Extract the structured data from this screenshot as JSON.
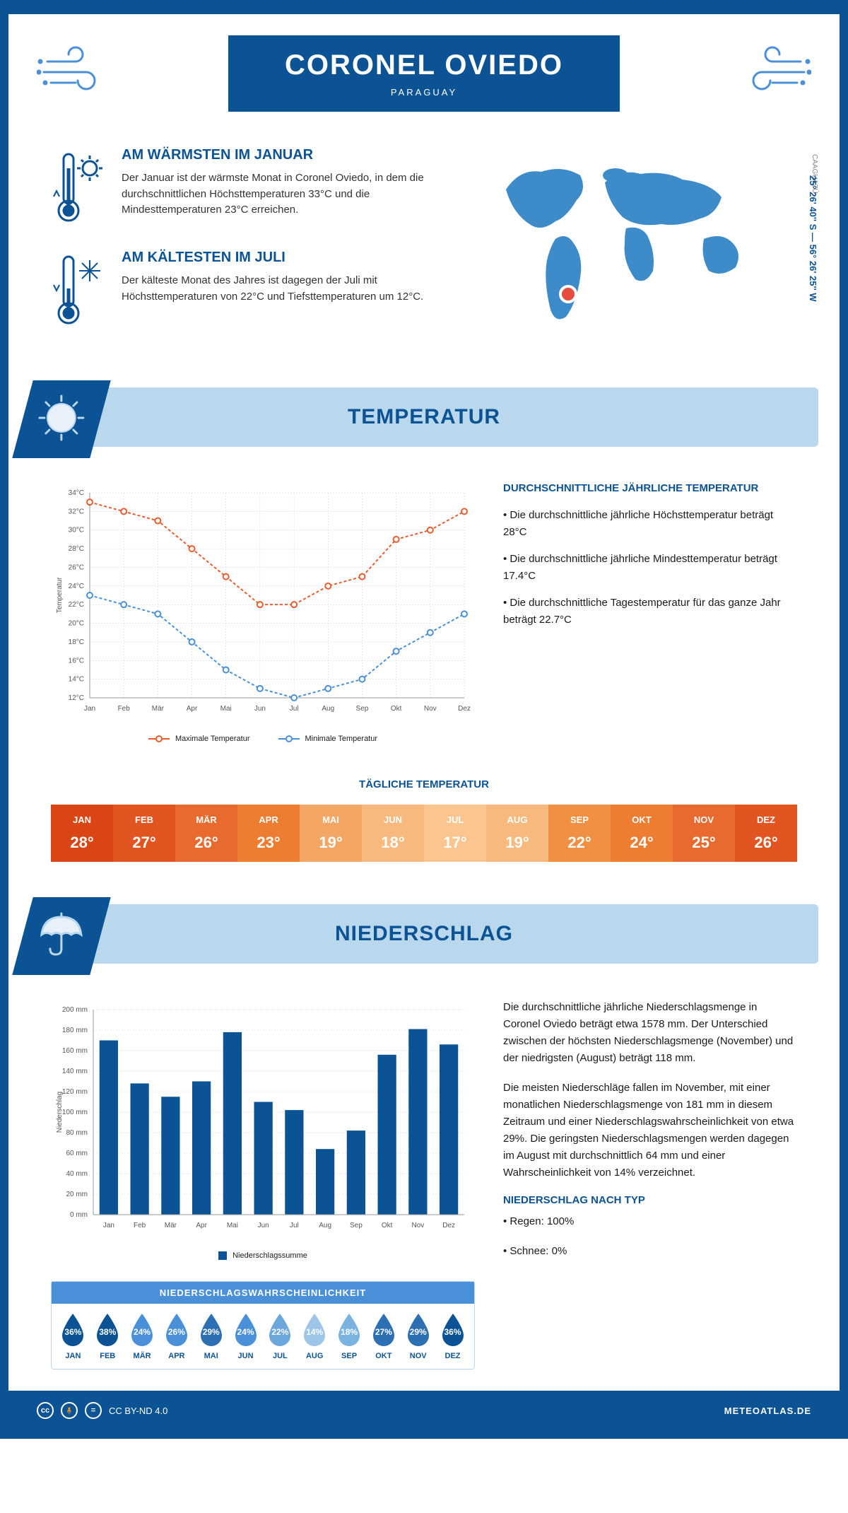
{
  "header": {
    "city": "CORONEL OVIEDO",
    "country": "PARAGUAY",
    "region": "CAAGUAZÚ",
    "coords": "25° 26' 40'' S — 56° 26' 25'' W"
  },
  "warmest": {
    "title": "AM WÄRMSTEN IM JANUAR",
    "text": "Der Januar ist der wärmste Monat in Coronel Oviedo, in dem die durchschnittlichen Höchsttemperaturen 33°C und die Mindesttemperaturen 23°C erreichen."
  },
  "coldest": {
    "title": "AM KÄLTESTEN IM JULI",
    "text": "Der kälteste Monat des Jahres ist dagegen der Juli mit Höchsttemperaturen von 22°C und Tiefsttemperaturen um 12°C."
  },
  "sections": {
    "temperature": "TEMPERATUR",
    "precipitation": "NIEDERSCHLAG",
    "daily_temp": "TÄGLICHE TEMPERATUR"
  },
  "temp_chart": {
    "months": [
      "Jan",
      "Feb",
      "Mär",
      "Apr",
      "Mai",
      "Jun",
      "Jul",
      "Aug",
      "Sep",
      "Okt",
      "Nov",
      "Dez"
    ],
    "max": [
      33,
      32,
      31,
      28,
      25,
      22,
      22,
      24,
      25,
      29,
      30,
      32
    ],
    "min": [
      23,
      22,
      21,
      18,
      15,
      13,
      12,
      13,
      14,
      17,
      19,
      21
    ],
    "ylabel": "Temperatur",
    "ymin": 12,
    "ymax": 34,
    "ystep": 2,
    "legend_max": "Maximale Temperatur",
    "legend_min": "Minimale Temperatur",
    "max_color": "#ea5b2f",
    "min_color": "#4a90d9"
  },
  "temp_text": {
    "heading": "DURCHSCHNITTLICHE JÄHRLICHE TEMPERATUR",
    "b1": "• Die durchschnittliche jährliche Höchsttemperatur beträgt 28°C",
    "b2": "• Die durchschnittliche jährliche Mindesttemperatur beträgt 17.4°C",
    "b3": "• Die durchschnittliche Tagestemperatur für das ganze Jahr beträgt 22.7°C"
  },
  "daily_temp_table": {
    "months": [
      "JAN",
      "FEB",
      "MÄR",
      "APR",
      "MAI",
      "JUN",
      "JUL",
      "AUG",
      "SEP",
      "OKT",
      "NOV",
      "DEZ"
    ],
    "values": [
      "28°",
      "27°",
      "26°",
      "23°",
      "19°",
      "18°",
      "17°",
      "19°",
      "22°",
      "24°",
      "25°",
      "26°"
    ],
    "colors": [
      "#d94514",
      "#e25521",
      "#e86a2e",
      "#ed7d31",
      "#f4a764",
      "#f7b97e",
      "#fac58f",
      "#f7b97e",
      "#f19043",
      "#ed7d31",
      "#e86a2e",
      "#e25521"
    ]
  },
  "precip_chart": {
    "months": [
      "Jan",
      "Feb",
      "Mär",
      "Apr",
      "Mai",
      "Jun",
      "Jul",
      "Aug",
      "Sep",
      "Okt",
      "Nov",
      "Dez"
    ],
    "values": [
      170,
      128,
      115,
      130,
      178,
      110,
      102,
      64,
      82,
      156,
      181,
      166
    ],
    "ylabel": "Niederschlag",
    "ymin": 0,
    "ymax": 200,
    "ystep": 20,
    "legend": "Niederschlagssumme",
    "bar_color": "#0b5394"
  },
  "precip_text": {
    "p1": "Die durchschnittliche jährliche Niederschlagsmenge in Coronel Oviedo beträgt etwa 1578 mm. Der Unterschied zwischen der höchsten Niederschlagsmenge (November) und der niedrigsten (August) beträgt 118 mm.",
    "p2": "Die meisten Niederschläge fallen im November, mit einer monatlichen Niederschlagsmenge von 181 mm in diesem Zeitraum und einer Niederschlagswahrscheinlichkeit von etwa 29%. Die geringsten Niederschlagsmengen werden dagegen im August mit durchschnittlich 64 mm und einer Wahrscheinlichkeit von 14% verzeichnet.",
    "type_heading": "NIEDERSCHLAG NACH TYP",
    "type1": "• Regen: 100%",
    "type2": "• Schnee: 0%"
  },
  "precip_prob": {
    "heading": "NIEDERSCHLAGSWAHRSCHEINLICHKEIT",
    "months": [
      "JAN",
      "FEB",
      "MÄR",
      "APR",
      "MAI",
      "JUN",
      "JUL",
      "AUG",
      "SEP",
      "OKT",
      "NOV",
      "DEZ"
    ],
    "values": [
      "36%",
      "38%",
      "24%",
      "26%",
      "29%",
      "24%",
      "22%",
      "14%",
      "18%",
      "27%",
      "29%",
      "36%"
    ],
    "colors": [
      "#0b5394",
      "#0b5394",
      "#4a90d9",
      "#4a90d9",
      "#2d6fb3",
      "#4a90d9",
      "#6ba6dd",
      "#9cc5e8",
      "#7ab3e0",
      "#2d6fb3",
      "#2d6fb3",
      "#0b5394"
    ]
  },
  "footer": {
    "license": "CC BY-ND 4.0",
    "site": "METEOATLAS.DE"
  }
}
